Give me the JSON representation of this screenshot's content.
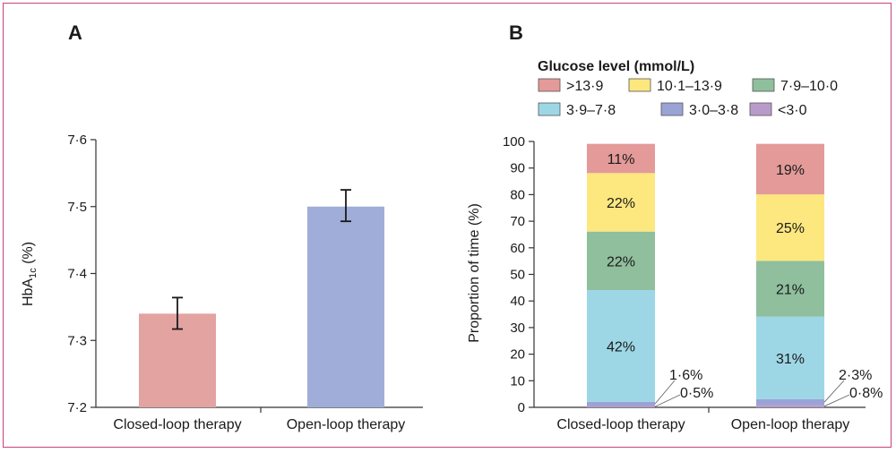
{
  "panels": {
    "a_label": "A",
    "b_label": "B"
  },
  "legend": {
    "title": "Glucose level (mmol/L)",
    "items": [
      {
        "label": ">13·9",
        "color": "#e39a98"
      },
      {
        "label": "10·1–13·9",
        "color": "#fde77f"
      },
      {
        "label": "7·9–10·0",
        "color": "#8fbf9d"
      },
      {
        "label": "3·9–7·8",
        "color": "#9dd7e6"
      },
      {
        "label": "3·0–3·8",
        "color": "#9aa3d6"
      },
      {
        "label": "<3·0",
        "color": "#b99bcb"
      }
    ]
  },
  "chart_data": [
    {
      "type": "bar",
      "panel": "A",
      "categories": [
        "Closed-loop therapy",
        "Open-loop therapy"
      ],
      "values": [
        7.34,
        7.5
      ],
      "error_low": [
        7.317,
        7.478
      ],
      "error_high": [
        7.364,
        7.525
      ],
      "colors": [
        "#e3a3a1",
        "#9fadd8"
      ],
      "ylabel": "HbA1c (%)",
      "ylabel_main": "HbA",
      "ylabel_sub": "1c",
      "ylabel_unit": " (%)",
      "ylim": [
        7.2,
        7.6
      ],
      "yticks": [
        7.2,
        7.3,
        7.4,
        7.5,
        7.6
      ],
      "ytick_labels": [
        "7·2",
        "7·3",
        "7·4",
        "7·5",
        "7·6"
      ]
    },
    {
      "type": "bar",
      "stacked": true,
      "panel": "B",
      "categories": [
        "Closed-loop therapy",
        "Open-loop therapy"
      ],
      "series": [
        {
          "name": "<3·0",
          "values": [
            0.5,
            0.8
          ],
          "color": "#b99bcb"
        },
        {
          "name": "3·0–3·8",
          "values": [
            1.6,
            2.3
          ],
          "color": "#9aa3d6"
        },
        {
          "name": "3·9–7·8",
          "values": [
            42,
            31
          ],
          "color": "#9dd7e6",
          "labels": [
            "42%",
            "31%"
          ]
        },
        {
          "name": "7·9–10·0",
          "values": [
            22,
            21
          ],
          "color": "#8fbf9d",
          "labels": [
            "22%",
            "21%"
          ]
        },
        {
          "name": "10·1–13·9",
          "values": [
            22,
            25
          ],
          "color": "#fde77f",
          "labels": [
            "22%",
            "25%"
          ]
        },
        {
          "name": ">13·9",
          "values": [
            11,
            19
          ],
          "color": "#e39a98",
          "labels": [
            "11%",
            "19%"
          ]
        }
      ],
      "callouts": [
        {
          "category": 0,
          "upper": "1·6%",
          "lower": "0·5%"
        },
        {
          "category": 1,
          "upper": "2·3%",
          "lower": "0·8%"
        }
      ],
      "ylabel": "Proportion of time (%)",
      "ylim": [
        0,
        100
      ],
      "yticks": [
        0,
        10,
        20,
        30,
        40,
        50,
        60,
        70,
        80,
        90,
        100
      ],
      "ytick_labels": [
        "0",
        "10",
        "20",
        "30",
        "40",
        "50",
        "60",
        "70",
        "80",
        "90",
        "100"
      ]
    }
  ]
}
